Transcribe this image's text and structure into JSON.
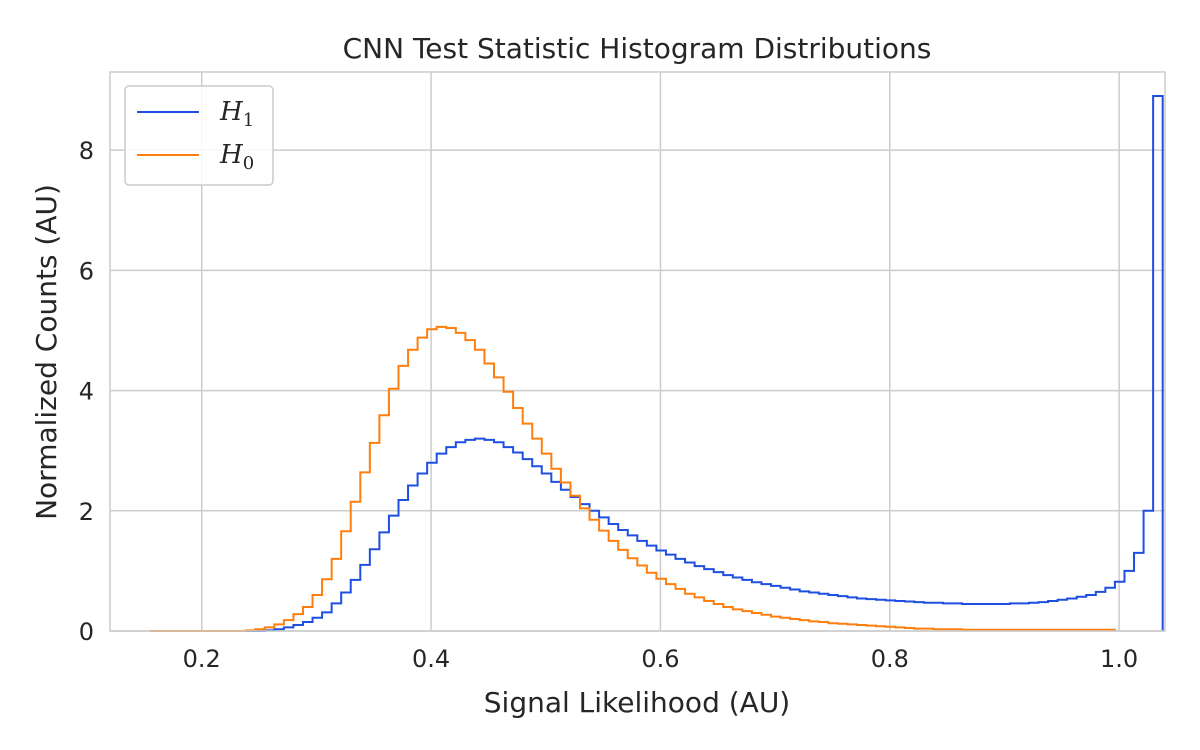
{
  "chart_data": {
    "type": "histogram",
    "title": "CNN Test Statistic Histogram Distributions",
    "xlabel": "Signal Likelihood (AU)",
    "ylabel": "Normalized Counts (AU)",
    "xlim": [
      0.12,
      1.04
    ],
    "ylim": [
      0,
      9.3
    ],
    "xticks": [
      0.2,
      0.4,
      0.6,
      0.8,
      1.0
    ],
    "xtick_labels": [
      "0.2",
      "0.4",
      "0.6",
      "0.8",
      "1.0"
    ],
    "yticks": [
      0,
      2,
      4,
      6,
      8
    ],
    "ytick_labels": [
      "0",
      "2",
      "4",
      "6",
      "8"
    ],
    "grid": true,
    "legend_position": "upper-left",
    "bin_start": 0.155,
    "bin_width": 0.00833,
    "series": [
      {
        "name": "H1",
        "legend_symbol": "H",
        "legend_subscript": "1",
        "color": "#1f4fe0",
        "values": [
          0,
          0,
          0,
          0,
          0,
          0,
          0,
          0,
          0,
          0,
          0,
          0,
          0.01,
          0.03,
          0.06,
          0.1,
          0.15,
          0.22,
          0.31,
          0.46,
          0.64,
          0.85,
          1.1,
          1.36,
          1.64,
          1.92,
          2.18,
          2.42,
          2.62,
          2.8,
          2.95,
          3.06,
          3.14,
          3.18,
          3.2,
          3.18,
          3.14,
          3.06,
          2.97,
          2.86,
          2.74,
          2.62,
          2.48,
          2.35,
          2.23,
          2.11,
          2.0,
          1.89,
          1.78,
          1.68,
          1.59,
          1.5,
          1.42,
          1.34,
          1.27,
          1.2,
          1.14,
          1.08,
          1.03,
          0.98,
          0.93,
          0.89,
          0.85,
          0.81,
          0.78,
          0.75,
          0.72,
          0.69,
          0.66,
          0.64,
          0.62,
          0.6,
          0.58,
          0.56,
          0.54,
          0.53,
          0.52,
          0.51,
          0.5,
          0.49,
          0.48,
          0.47,
          0.47,
          0.46,
          0.46,
          0.45,
          0.45,
          0.45,
          0.45,
          0.45,
          0.46,
          0.46,
          0.47,
          0.48,
          0.5,
          0.52,
          0.54,
          0.57,
          0.6,
          0.65,
          0.72,
          0.82,
          1.0,
          1.3,
          2.0,
          8.9
        ]
      },
      {
        "name": "H0",
        "legend_symbol": "H",
        "legend_subscript": "0",
        "color": "#ff7f0e",
        "values": [
          0,
          0,
          0,
          0,
          0,
          0,
          0,
          0,
          0,
          0,
          0.01,
          0.03,
          0.06,
          0.11,
          0.18,
          0.28,
          0.4,
          0.6,
          0.86,
          1.2,
          1.66,
          2.15,
          2.64,
          3.13,
          3.59,
          4.03,
          4.41,
          4.68,
          4.88,
          5.02,
          5.06,
          5.04,
          4.96,
          4.84,
          4.68,
          4.45,
          4.22,
          3.98,
          3.71,
          3.45,
          3.2,
          2.95,
          2.7,
          2.47,
          2.25,
          2.04,
          1.85,
          1.67,
          1.5,
          1.35,
          1.21,
          1.09,
          0.97,
          0.87,
          0.78,
          0.7,
          0.62,
          0.56,
          0.5,
          0.45,
          0.4,
          0.36,
          0.33,
          0.3,
          0.27,
          0.24,
          0.22,
          0.2,
          0.18,
          0.16,
          0.15,
          0.13,
          0.12,
          0.11,
          0.1,
          0.09,
          0.08,
          0.07,
          0.06,
          0.05,
          0.04,
          0.04,
          0.03,
          0.03,
          0.03,
          0.02,
          0.02,
          0.02,
          0.02,
          0.02,
          0.02,
          0.02,
          0.02,
          0.02,
          0.02,
          0.02,
          0.02,
          0.02,
          0.02,
          0.02,
          0.02
        ]
      }
    ]
  }
}
